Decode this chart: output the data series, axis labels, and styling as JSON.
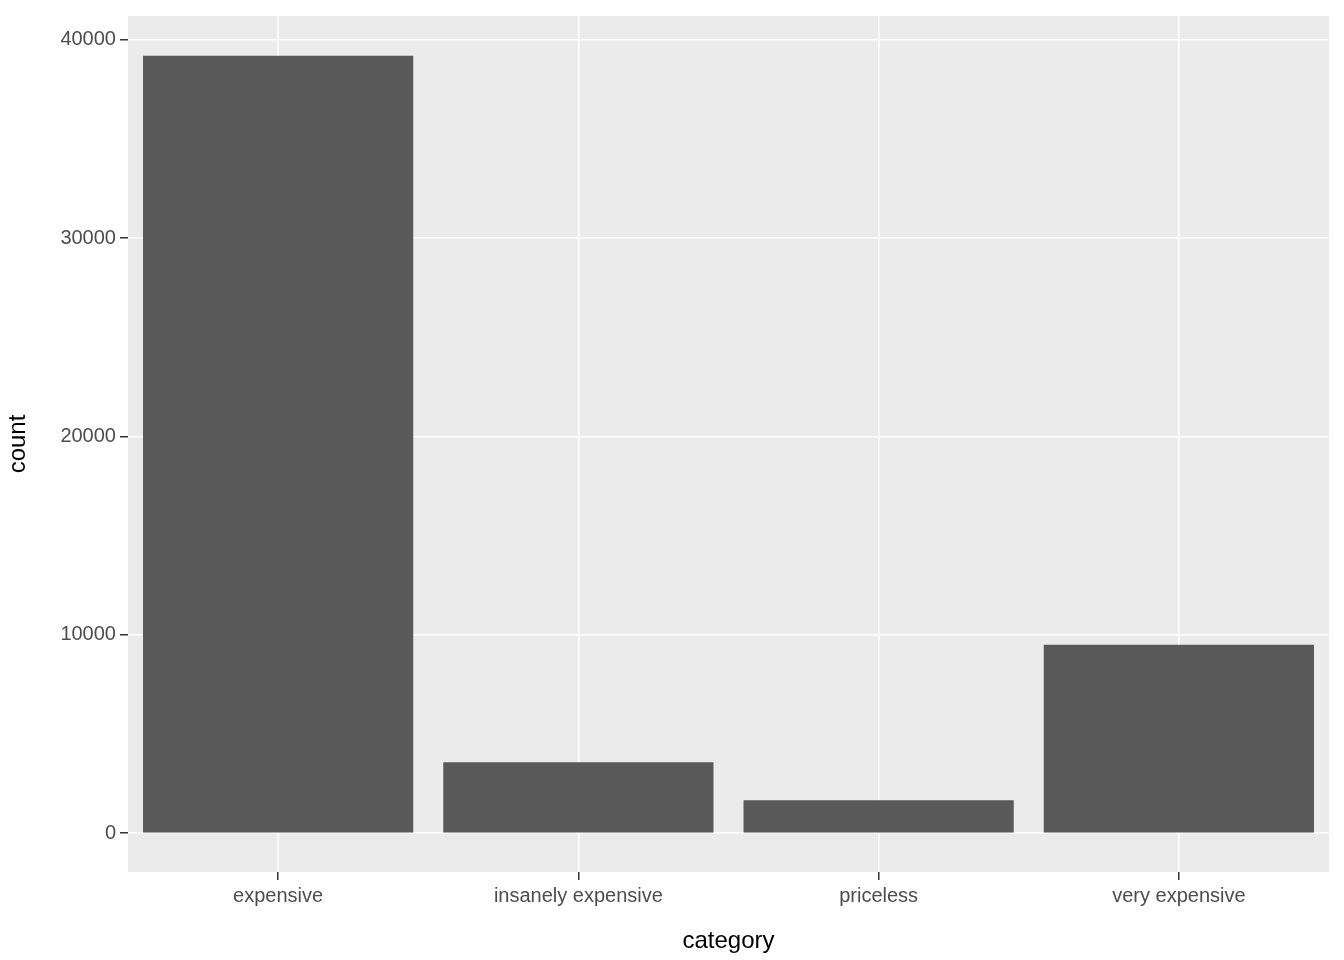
{
  "chart_data": {
    "type": "bar",
    "xlabel": "category",
    "ylabel": "count",
    "categories": [
      "expensive",
      "insanely expensive",
      "priceless",
      "very expensive"
    ],
    "values": [
      39200,
      3570,
      1660,
      9500
    ],
    "color": "#595959",
    "ylim": [
      -1960,
      41200
    ],
    "yticks": [
      0,
      10000,
      20000,
      30000,
      40000
    ],
    "grid": true
  }
}
